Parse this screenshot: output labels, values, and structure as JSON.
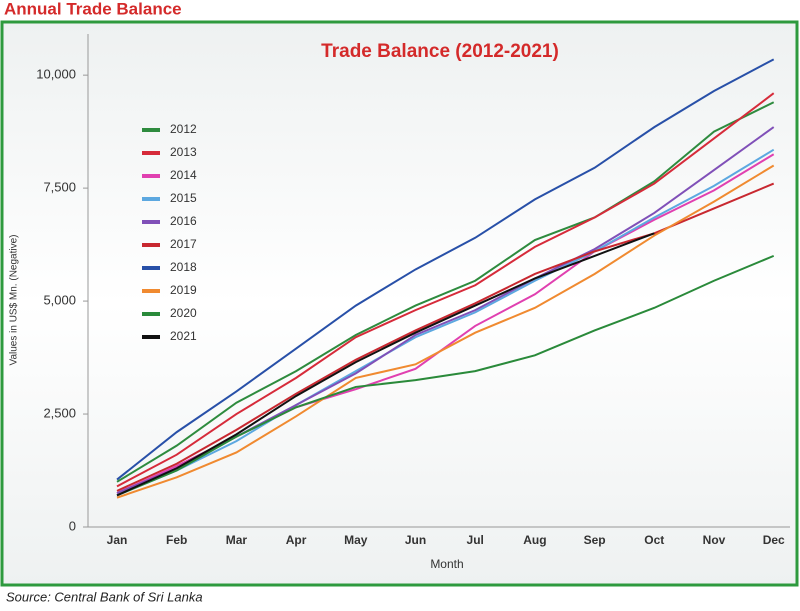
{
  "header": {
    "title": "Annual Trade Balance"
  },
  "source": "Source: Central Bank of Sri Lanka",
  "chart_data": {
    "type": "line",
    "title": "Trade Balance (2012-2021)",
    "x_label": "Month",
    "y_label": "Values in US$ Mn. (Negative)",
    "categories": [
      "Jan",
      "Feb",
      "Mar",
      "Apr",
      "May",
      "Jun",
      "Jul",
      "Aug",
      "Sep",
      "Oct",
      "Nov",
      "Dec"
    ],
    "ylim": [
      0,
      10800
    ],
    "yticks": [
      0,
      {
        "value": 2500,
        "label": "2,500"
      },
      {
        "value": 5000,
        "label": "5,000"
      },
      {
        "value": 7500,
        "label": "7,500"
      },
      {
        "value": 10000,
        "label": "10,000"
      }
    ],
    "grid": false,
    "legend": "upper left",
    "series": [
      {
        "name": "2012",
        "color": "#2e8b3e",
        "values": [
          1000,
          1800,
          2750,
          3450,
          4250,
          4900,
          5450,
          6350,
          6850,
          7650,
          8750,
          9400
        ]
      },
      {
        "name": "2013",
        "color": "#d62b3a",
        "values": [
          900,
          1600,
          2500,
          3300,
          4200,
          4800,
          5350,
          6200,
          6850,
          7600,
          8600,
          9600
        ]
      },
      {
        "name": "2014",
        "color": "#e040b0",
        "values": [
          750,
          1350,
          2000,
          2650,
          3050,
          3500,
          4450,
          5150,
          6100,
          6800,
          7450,
          8250
        ]
      },
      {
        "name": "2015",
        "color": "#5ca8e0",
        "values": [
          700,
          1250,
          1900,
          2700,
          3450,
          4200,
          4750,
          5450,
          6100,
          6850,
          7550,
          8350
        ]
      },
      {
        "name": "2016",
        "color": "#8050b8",
        "values": [
          750,
          1300,
          2000,
          2700,
          3400,
          4250,
          4800,
          5500,
          6150,
          6950,
          7900,
          8850
        ]
      },
      {
        "name": "2017",
        "color": "#c82830",
        "values": [
          800,
          1400,
          2150,
          2950,
          3700,
          4350,
          4950,
          5600,
          6100,
          6500,
          7050,
          7600
        ]
      },
      {
        "name": "2018",
        "color": "#2850a8",
        "values": [
          1050,
          2100,
          3000,
          3950,
          4900,
          5700,
          6400,
          7250,
          7950,
          8850,
          9650,
          10350
        ]
      },
      {
        "name": "2019",
        "color": "#f08a30",
        "values": [
          650,
          1100,
          1650,
          2450,
          3300,
          3600,
          4300,
          4850,
          5600,
          6450,
          7200,
          8000
        ]
      },
      {
        "name": "2020",
        "color": "#2a8a3a",
        "values": [
          700,
          1250,
          2000,
          2650,
          3100,
          3250,
          3450,
          3800,
          4350,
          4850,
          5450,
          6000
        ]
      },
      {
        "name": "2021",
        "color": "#111111",
        "values": [
          700,
          1300,
          2050,
          2900,
          3650,
          4300,
          4900,
          5500,
          6000,
          6500,
          null,
          null
        ]
      }
    ]
  }
}
